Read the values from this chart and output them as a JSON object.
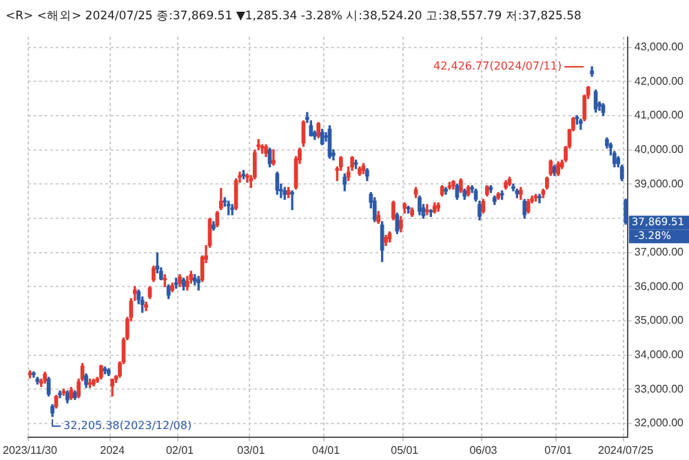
{
  "chart_data": {
    "type": "candlestick",
    "subtitle": "<R> <해외> 2024/07/25 종:37,869.51 ▼1,285.34 -3.28% 시:38,524.20 고:38,557.79 저:37,825.58",
    "categories": [
      "2023/11/30",
      null,
      null,
      null,
      null,
      null,
      null,
      null,
      null,
      null,
      null,
      null,
      null,
      null,
      null,
      null,
      null,
      null,
      null,
      null,
      null,
      null,
      "2024",
      null,
      null,
      null,
      null,
      null,
      null,
      null,
      null,
      null,
      null,
      null,
      null,
      null,
      null,
      null,
      null,
      null,
      "02/01",
      null,
      null,
      null,
      null,
      null,
      null,
      null,
      null,
      null,
      null,
      null,
      null,
      null,
      null,
      null,
      null,
      null,
      null,
      "03/01",
      null,
      null,
      null,
      null,
      null,
      null,
      null,
      null,
      null,
      null,
      null,
      null,
      null,
      null,
      null,
      null,
      null,
      null,
      null,
      "04/01",
      null,
      null,
      null,
      null,
      null,
      null,
      null,
      null,
      null,
      null,
      null,
      null,
      null,
      null,
      null,
      null,
      null,
      null,
      null,
      null,
      "05/01",
      null,
      null,
      null,
      null,
      null,
      null,
      null,
      null,
      null,
      null,
      null,
      null,
      null,
      null,
      null,
      null,
      null,
      null,
      null,
      null,
      "06/03",
      null,
      null,
      null,
      null,
      null,
      null,
      null,
      null,
      null,
      null,
      null,
      null,
      null,
      null,
      null,
      null,
      null,
      null,
      null,
      "07/01",
      null,
      null,
      null,
      null,
      null,
      null,
      null,
      null,
      null,
      null,
      null,
      null,
      null,
      null,
      null,
      null,
      null,
      "2024/07/25"
    ],
    "ohlc": [
      [
        33420,
        33540,
        33330,
        33487
      ],
      [
        33450,
        33510,
        33350,
        33431
      ],
      [
        33300,
        33350,
        33150,
        33231
      ],
      [
        33180,
        33300,
        33080,
        33232
      ],
      [
        33250,
        33500,
        33180,
        33446
      ],
      [
        33300,
        33350,
        32800,
        32858
      ],
      [
        32500,
        32550,
        32205.38,
        32307
      ],
      [
        32500,
        32820,
        32450,
        32791
      ],
      [
        32850,
        32950,
        32750,
        32843
      ],
      [
        32900,
        33000,
        32820,
        32926
      ],
      [
        32900,
        32950,
        32600,
        32686
      ],
      [
        32750,
        33050,
        32700,
        32970
      ],
      [
        32900,
        32950,
        32700,
        32758
      ],
      [
        32800,
        33300,
        32750,
        33219
      ],
      [
        33300,
        33750,
        33250,
        33675
      ],
      [
        33400,
        33450,
        33050,
        33141
      ],
      [
        33150,
        33300,
        33050,
        33169
      ],
      [
        33150,
        33300,
        33100,
        33255
      ],
      [
        33250,
        33350,
        33200,
        33305
      ],
      [
        33350,
        33700,
        33300,
        33681
      ],
      [
        33600,
        33650,
        33450,
        33540
      ],
      [
        33550,
        33600,
        33400,
        33464
      ],
      [
        33100,
        33300,
        32800,
        33288
      ],
      [
        33300,
        33400,
        33200,
        33377
      ],
      [
        33400,
        33800,
        33350,
        33763
      ],
      [
        33800,
        34500,
        33750,
        34442
      ],
      [
        34500,
        35100,
        34450,
        35049
      ],
      [
        35100,
        35650,
        35000,
        35577
      ],
      [
        35800,
        36000,
        35600,
        35901
      ],
      [
        35850,
        35900,
        35500,
        35619
      ],
      [
        35600,
        35700,
        35250,
        35477
      ],
      [
        35400,
        35550,
        35300,
        35466
      ],
      [
        35700,
        36000,
        35650,
        35963
      ],
      [
        36200,
        36600,
        36150,
        36546
      ],
      [
        36600,
        36990,
        36400,
        36517
      ],
      [
        36450,
        36550,
        36200,
        36226
      ],
      [
        36200,
        36350,
        36000,
        36236
      ],
      [
        36000,
        36050,
        35650,
        35751
      ],
      [
        35900,
        36100,
        35850,
        36026
      ],
      [
        36100,
        36250,
        35950,
        36065
      ],
      [
        36100,
        36350,
        36000,
        36286
      ],
      [
        36200,
        36250,
        35900,
        36011
      ],
      [
        36000,
        36300,
        35900,
        36158
      ],
      [
        36200,
        36450,
        36100,
        36354
      ],
      [
        36250,
        36350,
        36050,
        36160
      ],
      [
        36200,
        36300,
        35900,
        36119
      ],
      [
        36200,
        36900,
        36150,
        36863
      ],
      [
        36800,
        37200,
        36700,
        36897
      ],
      [
        37200,
        38000,
        37150,
        37963
      ],
      [
        37800,
        37900,
        37650,
        37703
      ],
      [
        37800,
        38200,
        37750,
        38157
      ],
      [
        38300,
        38870,
        38250,
        38487
      ],
      [
        38500,
        38600,
        38350,
        38470
      ],
      [
        38400,
        38500,
        38100,
        38363
      ],
      [
        38300,
        38400,
        38100,
        38262
      ],
      [
        38300,
        39150,
        38250,
        39098
      ],
      [
        39200,
        39350,
        39050,
        39233
      ],
      [
        39250,
        39400,
        39150,
        39239
      ],
      [
        39200,
        39300,
        39050,
        39208
      ],
      [
        39100,
        39250,
        38900,
        39166
      ],
      [
        39200,
        39990,
        39150,
        39910
      ],
      [
        40100,
        40300,
        40000,
        40109
      ],
      [
        40050,
        40150,
        39900,
        40097
      ],
      [
        39900,
        40150,
        39800,
        40090
      ],
      [
        40000,
        40050,
        39500,
        39598
      ],
      [
        39600,
        40000,
        39550,
        39688
      ],
      [
        39300,
        39350,
        38700,
        38820
      ],
      [
        38800,
        39000,
        38600,
        38797
      ],
      [
        38800,
        38900,
        38550,
        38695
      ],
      [
        38700,
        38900,
        38600,
        38807
      ],
      [
        38750,
        38800,
        38250,
        38708
      ],
      [
        38900,
        39800,
        38850,
        39740
      ],
      [
        39700,
        40050,
        39600,
        40003
      ],
      [
        40200,
        40850,
        40100,
        40815
      ],
      [
        40950,
        41090,
        40800,
        40888
      ],
      [
        40700,
        40850,
        40400,
        40414
      ],
      [
        40500,
        40550,
        40300,
        40398
      ],
      [
        40400,
        40800,
        40350,
        40762
      ],
      [
        40500,
        40600,
        40150,
        40168
      ],
      [
        40400,
        40500,
        40250,
        40369
      ],
      [
        40600,
        40700,
        39750,
        39803
      ],
      [
        39900,
        40000,
        39700,
        39838
      ],
      [
        39400,
        39500,
        39100,
        39451
      ],
      [
        39500,
        39800,
        39400,
        39773
      ],
      [
        39200,
        39300,
        38800,
        38992
      ],
      [
        39200,
        39500,
        39100,
        39347
      ],
      [
        39500,
        39800,
        39400,
        39773
      ],
      [
        39600,
        39700,
        39450,
        39581
      ],
      [
        39300,
        39500,
        39250,
        39442
      ],
      [
        39400,
        39600,
        39300,
        39523
      ],
      [
        39400,
        39450,
        39100,
        39232
      ],
      [
        38700,
        38750,
        38300,
        38471
      ],
      [
        38500,
        38600,
        37900,
        37961
      ],
      [
        37900,
        38200,
        37850,
        38079
      ],
      [
        37800,
        37900,
        36733,
        37068
      ],
      [
        37300,
        37500,
        37200,
        37438
      ],
      [
        37400,
        37600,
        37300,
        37552
      ],
      [
        38000,
        38500,
        37950,
        38460
      ],
      [
        38100,
        38150,
        37550,
        37628
      ],
      [
        37700,
        38050,
        37600,
        37934
      ],
      [
        38300,
        38450,
        38150,
        38405
      ],
      [
        38300,
        38350,
        38150,
        38274
      ],
      [
        38100,
        38300,
        38050,
        38236
      ],
      [
        38700,
        38900,
        38600,
        38835
      ],
      [
        38600,
        38650,
        38100,
        38202
      ],
      [
        38300,
        38400,
        38000,
        38073
      ],
      [
        38200,
        38400,
        38100,
        38229
      ],
      [
        38200,
        38250,
        38050,
        38179
      ],
      [
        38200,
        38450,
        38150,
        38356
      ],
      [
        38300,
        38450,
        38200,
        38385
      ],
      [
        38700,
        38950,
        38650,
        38920
      ],
      [
        38850,
        38900,
        38700,
        38787
      ],
      [
        38900,
        39050,
        38850,
        38946
      ],
      [
        38950,
        39100,
        38850,
        39069
      ],
      [
        38950,
        39000,
        38550,
        38617
      ],
      [
        38800,
        39150,
        38750,
        39103
      ],
      [
        38800,
        38850,
        38550,
        38646
      ],
      [
        38700,
        38950,
        38650,
        38900
      ],
      [
        38900,
        38950,
        38750,
        38855
      ],
      [
        38800,
        38850,
        38500,
        38556
      ],
      [
        38400,
        38500,
        37950,
        38054
      ],
      [
        38200,
        38550,
        38150,
        38487
      ],
      [
        38700,
        38950,
        38650,
        38923
      ],
      [
        38900,
        38950,
        38750,
        38837
      ],
      [
        38600,
        38650,
        38400,
        38490
      ],
      [
        38600,
        38750,
        38550,
        38703
      ],
      [
        38700,
        38800,
        38550,
        38683
      ],
      [
        38900,
        39100,
        38850,
        39038
      ],
      [
        39000,
        39200,
        38950,
        39134
      ],
      [
        38900,
        39000,
        38800,
        38876
      ],
      [
        38800,
        38850,
        38600,
        38720
      ],
      [
        38700,
        38900,
        38550,
        38814
      ],
      [
        38500,
        38550,
        38000,
        38102
      ],
      [
        38200,
        38550,
        38150,
        38482
      ],
      [
        38500,
        38650,
        38450,
        38570
      ],
      [
        38600,
        38700,
        38500,
        38633
      ],
      [
        38600,
        38700,
        38450,
        38596
      ],
      [
        38700,
        38850,
        38600,
        38804
      ],
      [
        38900,
        39200,
        38850,
        39173
      ],
      [
        39300,
        39700,
        39250,
        39667
      ],
      [
        39500,
        39550,
        39250,
        39341
      ],
      [
        39300,
        39650,
        39250,
        39583
      ],
      [
        39500,
        39700,
        39450,
        39631
      ],
      [
        39700,
        40100,
        39650,
        40074
      ],
      [
        40100,
        40600,
        40050,
        40580
      ],
      [
        40600,
        40950,
        40550,
        40913
      ],
      [
        40950,
        41000,
        40750,
        40912
      ],
      [
        40850,
        40900,
        40600,
        40780
      ],
      [
        40900,
        41600,
        40850,
        41580
      ],
      [
        41600,
        41850,
        41500,
        41831
      ],
      [
        42300,
        42426.77,
        42150,
        42224
      ],
      [
        41700,
        41750,
        41100,
        41190
      ],
      [
        41350,
        41400,
        41150,
        41275
      ],
      [
        41300,
        41350,
        41000,
        41097
      ],
      [
        40300,
        40350,
        40050,
        40126
      ],
      [
        40150,
        40200,
        39850,
        40063
      ],
      [
        39900,
        39950,
        39500,
        39599
      ],
      [
        39750,
        39800,
        39500,
        39594
      ],
      [
        39500,
        39550,
        39100,
        39154
      ],
      [
        38524.2,
        38557.79,
        37825.58,
        37869.51
      ]
    ],
    "ylim": [
      31600,
      43300
    ],
    "yticks": [
      {
        "value": 32000,
        "label": "32,000.00"
      },
      {
        "value": 33000,
        "label": "33,000.00"
      },
      {
        "value": 34000,
        "label": "34,000.00"
      },
      {
        "value": 35000,
        "label": "35,000.00"
      },
      {
        "value": 36000,
        "label": "36,000.00"
      },
      {
        "value": 37000,
        "label": "37,000.00"
      },
      {
        "value": 38000,
        "label": null
      },
      {
        "value": 39000,
        "label": "39,000.00"
      },
      {
        "value": 40000,
        "label": "40,000.00"
      },
      {
        "value": 41000,
        "label": "41,000.00"
      },
      {
        "value": 42000,
        "label": "42,000.00"
      },
      {
        "value": 43000,
        "label": "43,000.00"
      }
    ],
    "grid": true,
    "legend": false,
    "annotations": [
      "42,426.77(2024/07/11)",
      "32,205.38(2023/12/08)",
      "37,869.51",
      "-3.28%"
    ]
  }
}
